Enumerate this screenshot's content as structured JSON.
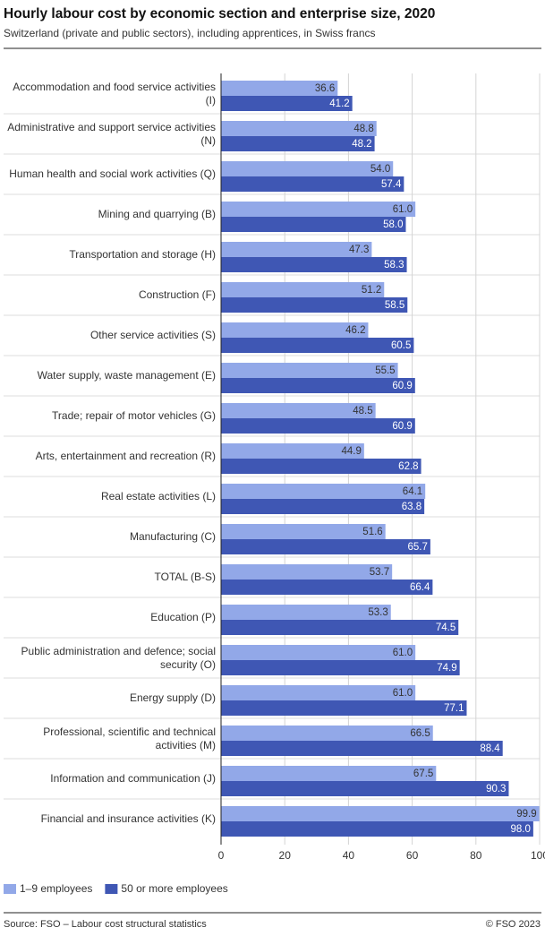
{
  "chart_data": {
    "type": "hbar",
    "title": "Hourly labour cost by economic section and enterprise size, 2020",
    "subtitle": "Switzerland (private and public sectors), including apprentices, in Swiss francs",
    "categories": [
      "Accommodation and food service activities (I)",
      "Administrative and support service activities (N)",
      "Human health and social work activities (Q)",
      "Mining and quarrying (B)",
      "Transportation and storage (H)",
      "Construction (F)",
      "Other service activities (S)",
      "Water supply, waste management (E)",
      "Trade; repair of motor vehicles (G)",
      "Arts, entertainment and recreation (R)",
      "Real estate activities (L)",
      "Manufacturing (C)",
      "TOTAL (B-S)",
      "Education (P)",
      "Public administration and defence; social security (O)",
      "Energy supply (D)",
      "Professional, scientific and technical activities (M)",
      "Information and communication (J)",
      "Financial and insurance activities (K)"
    ],
    "series": [
      {
        "name": "1–9 employees",
        "color": "#92a8e8",
        "label_color": "#333333",
        "values": [
          36.6,
          48.8,
          54.0,
          61.0,
          47.3,
          51.2,
          46.2,
          55.5,
          48.5,
          44.9,
          64.1,
          51.6,
          53.7,
          53.3,
          61.0,
          61.0,
          66.5,
          67.5,
          99.9
        ],
        "value_labels": [
          "36.6",
          "48.8",
          "54.0",
          "61.0",
          "47.3",
          "51.2",
          "46.2",
          "55.5",
          "48.5",
          "44.9",
          "64.1",
          "51.6",
          "53.7",
          "53.3",
          "61.0",
          "61.0",
          "66.5",
          "67.5",
          "99.9"
        ]
      },
      {
        "name": "50 or more employees",
        "color": "#3f57b4",
        "label_color": "#ffffff",
        "values": [
          41.2,
          48.2,
          57.4,
          58.0,
          58.3,
          58.5,
          60.5,
          60.9,
          60.9,
          62.8,
          63.8,
          65.7,
          66.4,
          74.5,
          74.9,
          77.1,
          88.4,
          90.3,
          98.0
        ],
        "value_labels": [
          "41.2",
          "48.2",
          "57.4",
          "58.0",
          "58.3",
          "58.5",
          "60.5",
          "60.9",
          "60.9",
          "62.8",
          "63.8",
          "65.7",
          "66.4",
          "74.5",
          "74.9",
          "77.1",
          "88.4",
          "90.3",
          "98.0"
        ]
      }
    ],
    "xlim": [
      0,
      100
    ],
    "xticks": [
      0,
      20,
      40,
      60,
      80,
      100
    ],
    "grid": true,
    "source": "Source: FSO – Labour cost structural statistics",
    "copyright": "© FSO 2023"
  }
}
